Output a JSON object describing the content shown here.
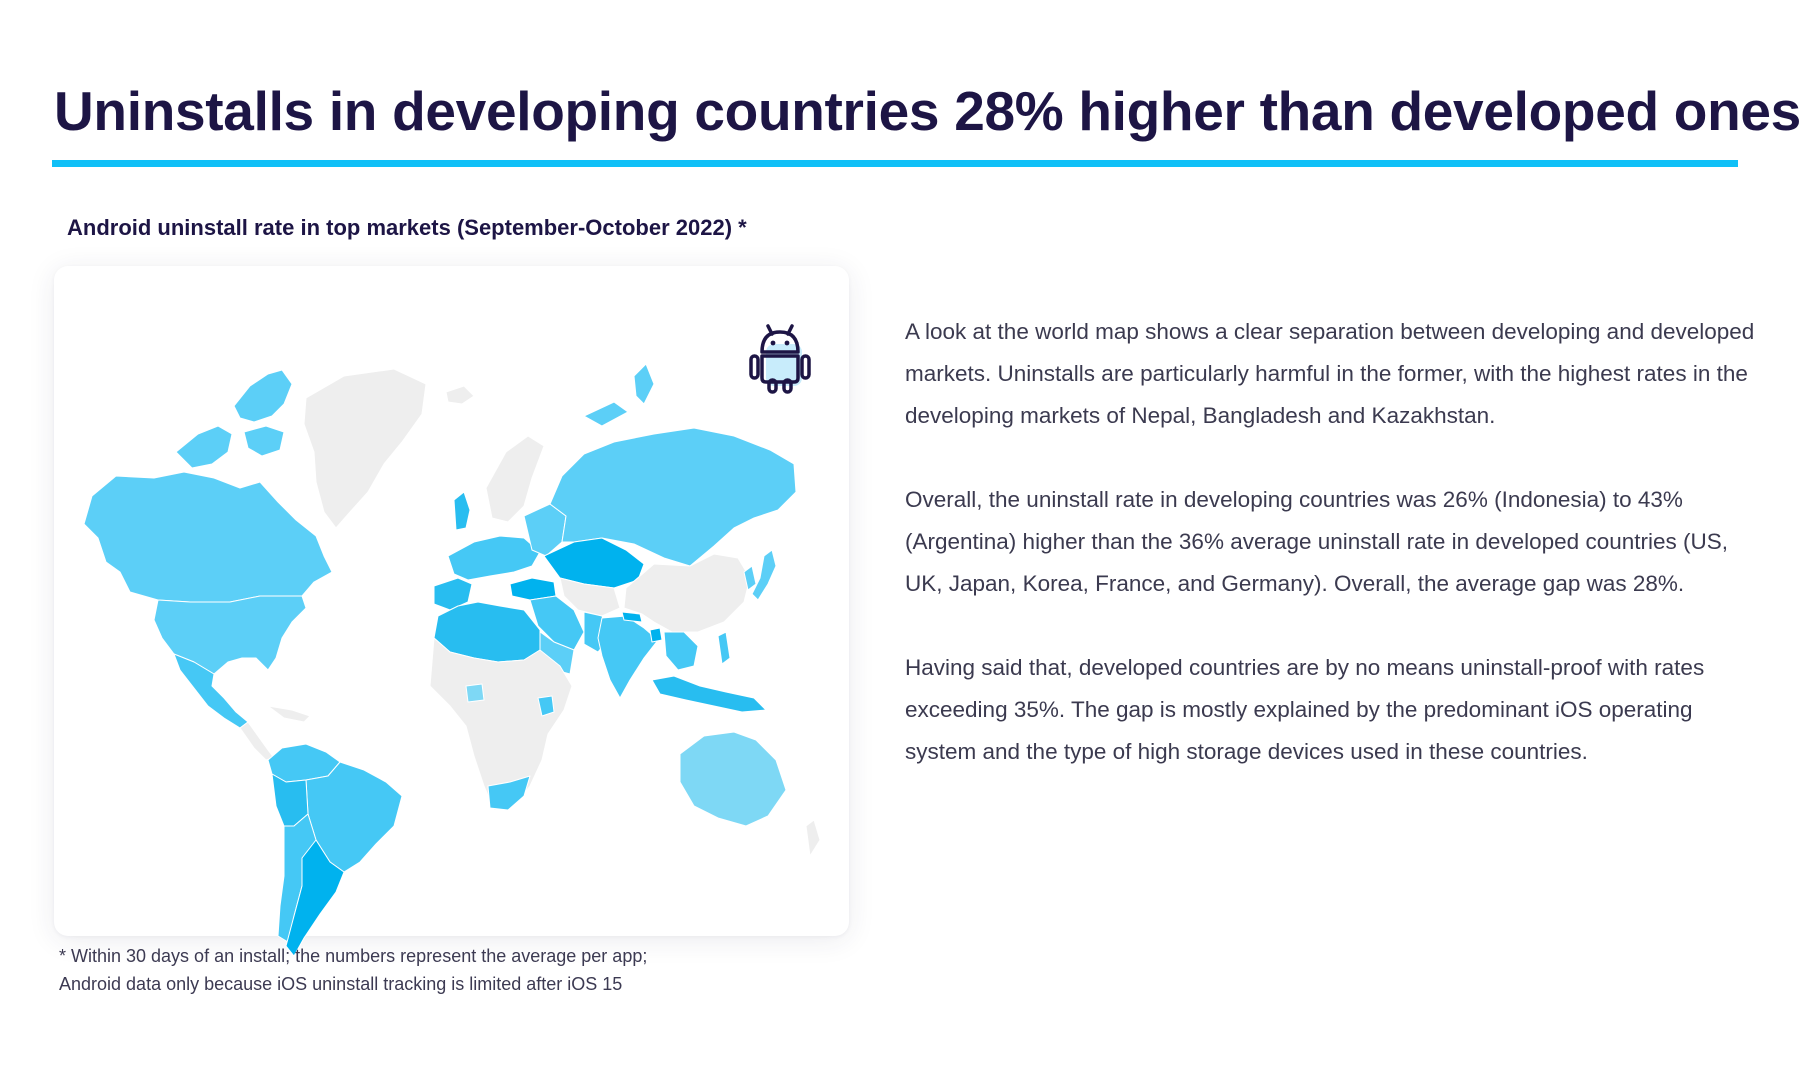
{
  "title": "Uninstalls in developing countries 28% higher than developed ones",
  "map": {
    "subtitle": "Android uninstall rate in top markets (September-October 2022) *",
    "platform": "Android",
    "colors": {
      "no_data": "#eeeeee",
      "lowest": "#7ed8f5",
      "low": "#5ccff7",
      "mid": "#45c8f5",
      "high": "#28bdf0",
      "highest": "#00b2ee",
      "water": "#ffffff"
    },
    "highlighted_markets": {
      "highest": [
        "Nepal",
        "Bangladesh",
        "Kazakhstan"
      ],
      "named_rates": [
        {
          "country": "Indonesia",
          "label": "26%"
        },
        {
          "country": "Argentina",
          "label": "43%"
        }
      ]
    },
    "footnote_lines": [
      "* Within 30 days of an install; the numbers represent the average per app;",
      "Android data only because iOS uninstall tracking is limited after iOS 15"
    ]
  },
  "body": {
    "paragraphs": [
      "A look at the world map shows a clear separation between developing and developed markets. Uninstalls are particularly harmful in the former, with the highest rates in the developing markets of Nepal, Bangladesh and Kazakhstan.",
      "Overall, the uninstall rate in developing countries was 26% (Indonesia) to 43% (Argentina) higher than the 36% average uninstall rate in developed countries (US, UK, Japan, Korea, France, and Germany). Overall, the average gap was 28%.",
      "Having said that, developed countries are by no means uninstall-proof with rates exceeding 35%. The gap is mostly explained by the predominant iOS operating system and the type of high storage devices used in these countries."
    ]
  }
}
